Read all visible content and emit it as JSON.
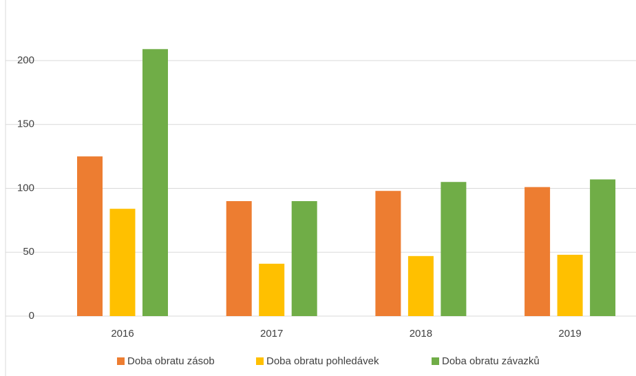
{
  "chart_data": {
    "type": "bar",
    "categories": [
      "2016",
      "2017",
      "2018",
      "2019"
    ],
    "series": [
      {
        "name": "Doba obratu zásob",
        "color": "#ed7d31",
        "values": [
          125,
          90,
          98,
          101
        ]
      },
      {
        "name": "Doba obratu pohledávek",
        "color": "#ffc000",
        "values": [
          84,
          41,
          47,
          48
        ]
      },
      {
        "name": "Doba obratu závazků",
        "color": "#70ad47",
        "values": [
          209,
          90,
          105,
          107
        ]
      }
    ],
    "ylim": [
      0,
      250
    ],
    "yticks": [
      0,
      50,
      100,
      150,
      200
    ],
    "grid": true,
    "legend": "bottom"
  }
}
